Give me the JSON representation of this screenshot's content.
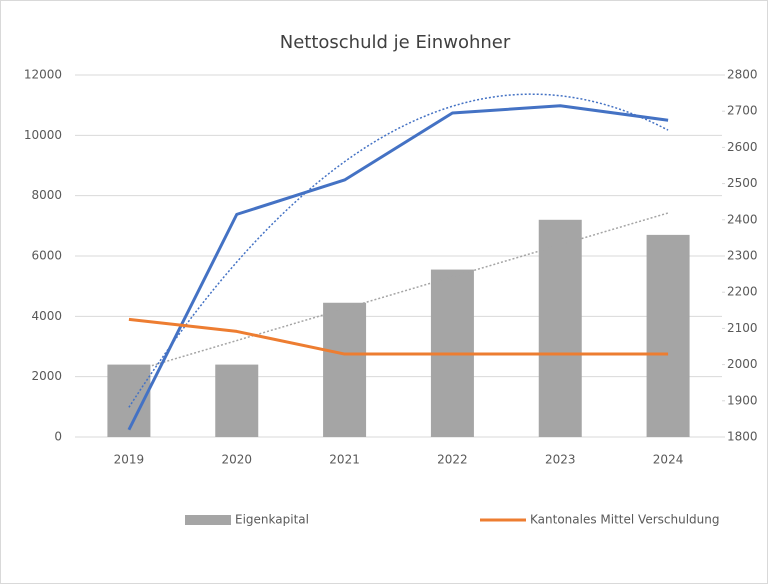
{
  "chart_data": {
    "type": "bar",
    "title": "Nettoschuld je Einwohner",
    "categories": [
      "2019",
      "2020",
      "2021",
      "2022",
      "2023",
      "2024"
    ],
    "series": [
      {
        "name": "Eigenkapital",
        "type": "bar",
        "color": "#a5a5a5",
        "values": [
          2400,
          2400,
          4450,
          5550,
          7200,
          6700
        ]
      },
      {
        "type": "line",
        "color": "#4472c4",
        "axis": "y2",
        "values": [
          1820,
          2415,
          2510,
          2695,
          2715,
          2675
        ]
      },
      {
        "name": "Kantonales Mittel Verschuldung",
        "type": "line",
        "color": "#ed7d31",
        "values": [
          3900,
          3500,
          2750,
          2750,
          2750,
          2750
        ]
      }
    ],
    "ylim": [
      0,
      12000
    ],
    "yticks": [
      0,
      2000,
      4000,
      6000,
      8000,
      10000,
      12000
    ],
    "y2lim": [
      1800,
      2800
    ],
    "y2ticks": [
      1800,
      1900,
      2000,
      2100,
      2200,
      2300,
      2400,
      2500,
      2600,
      2700,
      2800
    ],
    "grid": true
  }
}
